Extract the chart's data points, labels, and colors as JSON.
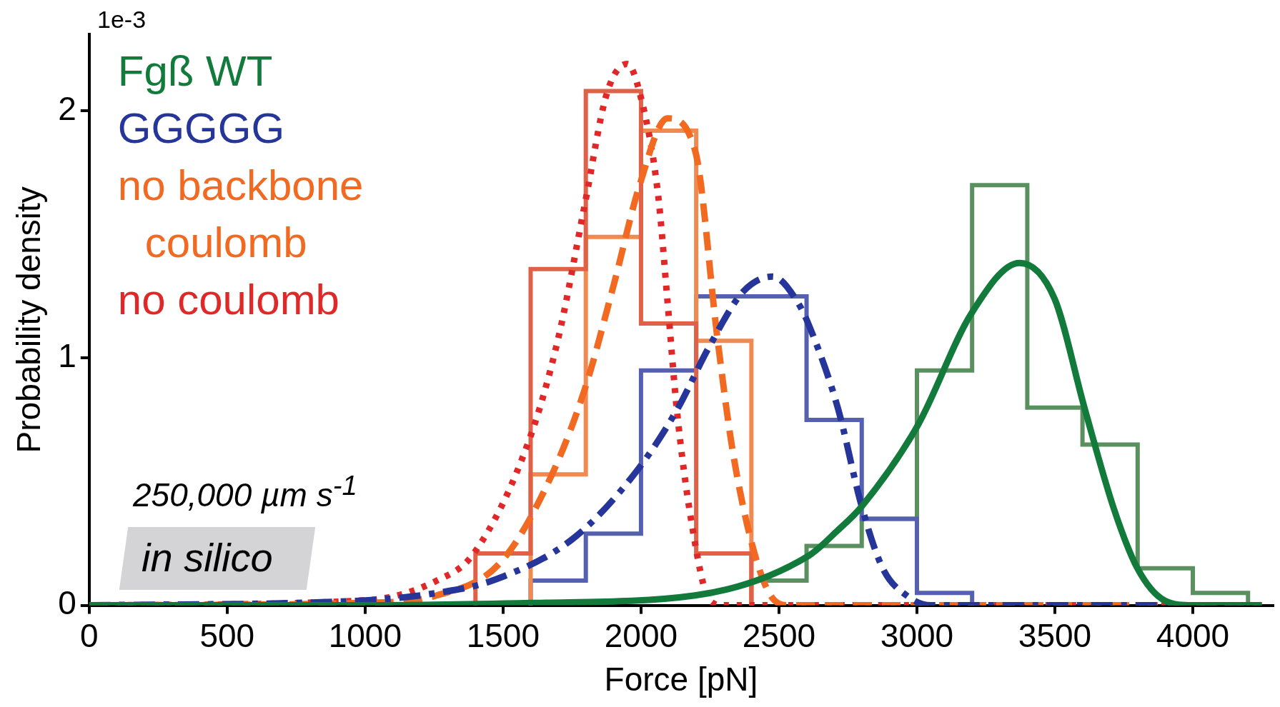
{
  "chart_data": {
    "type": "histogram",
    "xlabel": "Force [pN]",
    "ylabel": "Probability density",
    "xlim": [
      0,
      4290
    ],
    "ylim": [
      0,
      2.31
    ],
    "xticks": [
      0,
      500,
      1000,
      1500,
      2000,
      2500,
      3000,
      3500,
      4000
    ],
    "yticks": [
      0,
      1,
      2
    ],
    "grid": false,
    "legend": "top left",
    "annotations": [
      "1e-3",
      "250,000 µm s$^{-1}$",
      "in silico"
    ],
    "series": [
      {
        "color": "#5a9060",
        "bins": [
          2400,
          2600,
          2800,
          3000,
          3200,
          3400,
          3600,
          3800,
          4000,
          4200
        ],
        "values": [
          0.1,
          0.24,
          0.35,
          0.95,
          1.7,
          0.8,
          0.65,
          0.15,
          0.05
        ]
      },
      {
        "color": "#5560b0",
        "bins": [
          1600,
          1800,
          2000,
          2200,
          2400,
          2600,
          2800,
          3000,
          3200
        ],
        "values": [
          0.1,
          0.29,
          0.95,
          1.25,
          1.25,
          0.75,
          0.35,
          0.05
        ]
      },
      {
        "color": "#f08a50",
        "bins": [
          1600,
          1800,
          2000,
          2200,
          2400
        ],
        "values": [
          0.53,
          1.49,
          1.92,
          1.07
        ]
      },
      {
        "color": "#e06048",
        "bins": [
          1400,
          1600,
          1800,
          2000,
          2200,
          2400
        ],
        "values": [
          0.21,
          1.36,
          2.08,
          1.14,
          0.21
        ]
      },
      {
        "type": "line",
        "name": "Fgß WT",
        "color": "#127a3a",
        "line_style": "solid",
        "x": [
          0,
          1000,
          1620,
          2196,
          2607,
          2710,
          2800,
          3004,
          3197,
          3372,
          3499,
          3607,
          3714,
          3799,
          3897,
          4000,
          4250
        ],
        "values": [
          0,
          0,
          0.01,
          0.04,
          0.2,
          0.3,
          0.4,
          0.73,
          1.18,
          1.385,
          1.24,
          0.8,
          0.39,
          0.15,
          0.02,
          0,
          0
        ]
      },
      {
        "type": "line",
        "name": "GGGGG",
        "color": "#26359a",
        "line_style": "dashdot",
        "x": [
          0,
          1000,
          1260,
          1461,
          1754,
          1982,
          2130,
          2249,
          2371,
          2477,
          2571,
          2617,
          2713,
          2800,
          2876,
          2962,
          3050,
          4250
        ],
        "values": [
          0,
          0.02,
          0.05,
          0.1,
          0.27,
          0.54,
          0.79,
          1.05,
          1.27,
          1.33,
          1.22,
          1.11,
          0.8,
          0.4,
          0.15,
          0.04,
          0,
          0
        ]
      },
      {
        "type": "line",
        "name": "no backbone coulomb",
        "color": "#f26a22",
        "line_style": "dashed",
        "x": [
          0,
          1000,
          1260,
          1488,
          1661,
          1795,
          1902,
          1995,
          2096,
          2196,
          2277,
          2330,
          2397,
          2464,
          2530,
          4250
        ],
        "values": [
          0,
          0.01,
          0.04,
          0.17,
          0.49,
          0.87,
          1.3,
          1.7,
          1.97,
          1.84,
          1.08,
          0.64,
          0.27,
          0.05,
          0,
          0
        ]
      },
      {
        "type": "line",
        "name": "no coulomb",
        "color": "#e02828",
        "line_style": "dotted",
        "x": [
          0,
          1000,
          1260,
          1394,
          1595,
          1700,
          1796,
          1876,
          1950,
          1996,
          2062,
          2096,
          2130,
          2181,
          2249,
          2300,
          4250
        ],
        "values": [
          0,
          0.02,
          0.1,
          0.21,
          0.67,
          1.08,
          1.62,
          2.07,
          2.19,
          2.07,
          1.66,
          1.23,
          0.79,
          0.35,
          0.02,
          0,
          0
        ]
      }
    ]
  }
}
